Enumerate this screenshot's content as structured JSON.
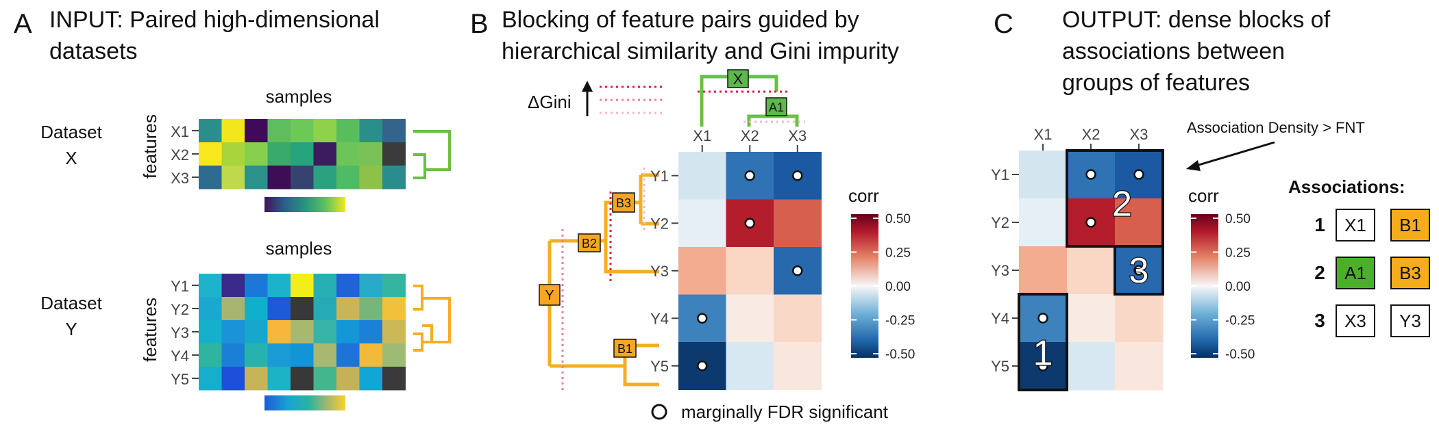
{
  "panel_a": {
    "letter": "A",
    "title_line1": "INPUT: Paired high-dimensional",
    "title_line2": "datasets",
    "samples_label": "samples",
    "features_label": "features",
    "dataset_x_line1": "Dataset",
    "dataset_x_line2": "X",
    "dataset_y_line1": "Dataset",
    "dataset_y_line2": "Y",
    "x_rows": [
      "X1",
      "X2",
      "X3"
    ],
    "y_rows": [
      "Y1",
      "Y2",
      "Y3",
      "Y4",
      "Y5"
    ],
    "x_colors": [
      [
        "#2a8f8b",
        "#f2e61c",
        "#3e0a59",
        "#5ebd5c",
        "#6dc85a",
        "#8fd24a",
        "#5abd5c",
        "#2a8f8b",
        "#34638b"
      ],
      [
        "#f8e71c",
        "#a9d43c",
        "#87cf4c",
        "#3aaa6a",
        "#26a47c",
        "#3c1c5f",
        "#6cc559",
        "#7ac257",
        "#3b3b3b"
      ],
      [
        "#2e6b8f",
        "#bfd84c",
        "#2b918a",
        "#3d0d56",
        "#36436f",
        "#2ca17f",
        "#4fbb65",
        "#8ec04c",
        "#2a8c8d"
      ]
    ],
    "y_colors": [
      [
        "#1db3cc",
        "#3a2a8a",
        "#1a78d8",
        "#1bb3cb",
        "#f2ee1a",
        "#26b0b4",
        "#1f63d6",
        "#28aacb",
        "#33b5a0"
      ],
      [
        "#1ba8cf",
        "#a8b570",
        "#0fb0cc",
        "#1d5ad8",
        "#383838",
        "#26aab4",
        "#c9b457",
        "#78b57b",
        "#f2c03a"
      ],
      [
        "#15b1cc",
        "#1a93d8",
        "#18a7cc",
        "#f6b73b",
        "#a8b86f",
        "#38b3a8",
        "#1596d6",
        "#1c7fd8",
        "#cdb858"
      ],
      [
        "#2db59e",
        "#1b7fd5",
        "#26b3b0",
        "#1b9bd5",
        "#1294d6",
        "#a8b871",
        "#1d73d8",
        "#f3b938",
        "#9ebb75"
      ],
      [
        "#16aecc",
        "#1e4fd8",
        "#c5b558",
        "#1bb3c5",
        "#383838",
        "#45b58e",
        "#c4b259",
        "#12a6d6",
        "#3a3a3a"
      ]
    ],
    "cbar_x": [
      "#3d1655",
      "#2c5f8c",
      "#26957e",
      "#5bc15f",
      "#f2e71e"
    ],
    "cbar_y": [
      "#1f5ad7",
      "#17a5d2",
      "#2bb39f",
      "#b0b86a",
      "#f8d22a"
    ]
  },
  "panel_b": {
    "letter": "B",
    "title_line1": "Blocking of feature pairs guided by",
    "title_line2": "hierarchical similarity and Gini impurity",
    "delta_gini": "ΔGini",
    "columns": [
      "X1",
      "X2",
      "X3"
    ],
    "rows": [
      "Y1",
      "Y2",
      "Y3",
      "Y4",
      "Y5"
    ],
    "node_x": "X",
    "node_a1": "A1",
    "node_y": "Y",
    "node_b1": "B1",
    "node_b2": "B2",
    "node_b3": "B3",
    "legend_text": "marginally FDR significant",
    "colorbar": {
      "title": "corr",
      "ticks": [
        "0.50",
        "0.25",
        "0.00",
        "-0.25",
        "-0.50"
      ]
    }
  },
  "panel_c": {
    "letter": "C",
    "title_line1": "OUTPUT: dense blocks of",
    "title_line2": "associations between",
    "title_line3": "groups of features",
    "columns": [
      "X1",
      "X2",
      "X3"
    ],
    "rows": [
      "Y1",
      "Y2",
      "Y3",
      "Y4",
      "Y5"
    ],
    "annotation": "Association Density > FNT",
    "block_labels": [
      "1",
      "2",
      "3"
    ],
    "colorbar": {
      "title": "corr",
      "ticks": [
        "0.50",
        "0.25",
        "0.00",
        "-0.25",
        "-0.50"
      ]
    },
    "associations_title": "Associations:",
    "associations": [
      {
        "num": "1",
        "x": "X1",
        "y": "B1",
        "x_color": "#ffffff",
        "y_color": "#f6ad1c"
      },
      {
        "num": "2",
        "x": "A1",
        "y": "B3",
        "x_color": "#4caf2c",
        "y_color": "#f6ad1c"
      },
      {
        "num": "3",
        "x": "X3",
        "y": "Y3",
        "x_color": "#ffffff",
        "y_color": "#ffffff"
      }
    ]
  },
  "heatmap_colors": [
    [
      "#d3e6f0",
      "#2f73b4",
      "#1b5aa2"
    ],
    [
      "#e6eff5",
      "#b31d2c",
      "#d6604d"
    ],
    [
      "#f4ac90",
      "#fad6c5",
      "#2868ad"
    ],
    [
      "#3d82bd",
      "#f8ebe4",
      "#fad8c7"
    ],
    [
      "#0d3a6e",
      "#d8e8f2",
      "#f9e6dc"
    ]
  ],
  "significant_cells": [
    [
      0,
      1
    ],
    [
      0,
      2
    ],
    [
      1,
      1
    ],
    [
      2,
      2
    ],
    [
      3,
      0
    ],
    [
      4,
      0
    ]
  ],
  "colors": {
    "green_tree": "#6abf45",
    "orange_tree": "#f5ae23",
    "green_node": "#5cb84a",
    "orange_node": "#f5a623",
    "red_dotted": "#e8173f"
  }
}
